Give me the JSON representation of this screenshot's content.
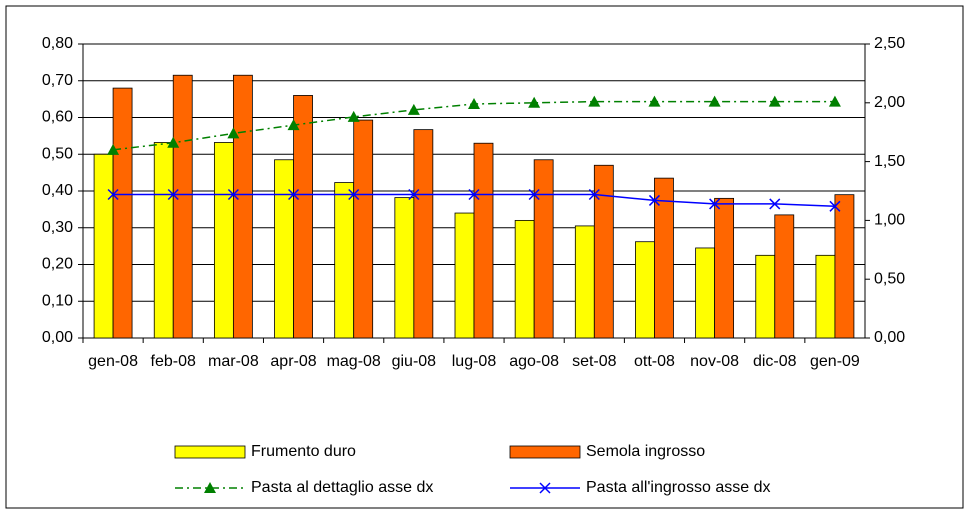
{
  "chart_data": {
    "type": "bar",
    "categories": [
      "gen-08",
      "feb-08",
      "mar-08",
      "apr-08",
      "mag-08",
      "giu-08",
      "lug-08",
      "ago-08",
      "set-08",
      "ott-08",
      "nov-08",
      "dic-08",
      "gen-09"
    ],
    "series": [
      {
        "name": "Frumento duro",
        "type": "bar",
        "color": "#ffff00",
        "values": [
          0.5,
          0.532,
          0.532,
          0.485,
          0.423,
          0.382,
          0.34,
          0.32,
          0.305,
          0.262,
          0.245,
          0.225,
          0.225
        ]
      },
      {
        "name": "Semola ingrosso",
        "type": "bar",
        "color": "#ff6600",
        "values": [
          0.68,
          0.715,
          0.715,
          0.66,
          0.593,
          0.567,
          0.53,
          0.485,
          0.47,
          0.435,
          0.38,
          0.335,
          0.39
        ]
      },
      {
        "name": "Pasta al dettaglio asse dx",
        "type": "line",
        "axis": "y2",
        "color": "#008000",
        "line_style": "dashdot",
        "marker": "triangle",
        "values": [
          1.6,
          1.66,
          1.74,
          1.81,
          1.88,
          1.94,
          1.99,
          2.0,
          2.01,
          2.01,
          2.01,
          2.01,
          2.01
        ]
      },
      {
        "name": "Pasta all'ingrosso asse dx",
        "type": "line",
        "axis": "y2",
        "color": "#0000ff",
        "line_style": "solid",
        "marker": "x",
        "values": [
          1.22,
          1.22,
          1.22,
          1.22,
          1.22,
          1.22,
          1.22,
          1.22,
          1.22,
          1.17,
          1.14,
          1.14,
          1.12
        ]
      }
    ],
    "ylim": [
      0,
      0.8
    ],
    "yticks": [
      {
        "value": 0,
        "label": "0,00"
      },
      {
        "value": 0.1,
        "label": "0,10"
      },
      {
        "value": 0.2,
        "label": "0,20"
      },
      {
        "value": 0.3,
        "label": "0,30"
      },
      {
        "value": 0.4,
        "label": "0,40"
      },
      {
        "value": 0.5,
        "label": "0,50"
      },
      {
        "value": 0.6,
        "label": "0,60"
      },
      {
        "value": 0.7,
        "label": "0,70"
      },
      {
        "value": 0.8,
        "label": "0,80"
      }
    ],
    "y2lim": [
      0,
      2.5
    ],
    "y2ticks": [
      {
        "value": 0,
        "label": "0,00"
      },
      {
        "value": 0.5,
        "label": "0,50"
      },
      {
        "value": 1,
        "label": "1,00"
      },
      {
        "value": 1.5,
        "label": "1,50"
      },
      {
        "value": 2,
        "label": "2,00"
      },
      {
        "value": 2.5,
        "label": "2,50"
      }
    ],
    "grid": true,
    "legend": "bottom"
  }
}
